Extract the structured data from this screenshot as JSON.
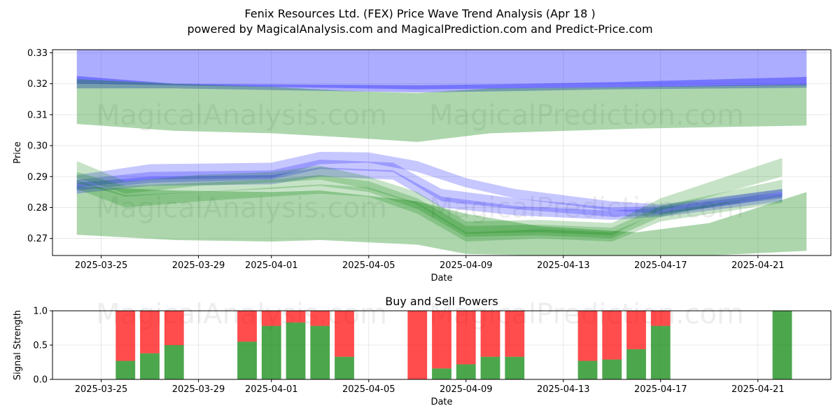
{
  "page": {
    "title": "Fenix Resources Ltd. (FEX) Price Wave Trend Analysis (Apr 18 )",
    "subtitle": "powered by MagicalAnalysis.com and MagicalPrediction.com and Predict-Price.com",
    "watermarks": [
      "MagicalAnalysis.com",
      "MagicalPrediction.com"
    ]
  },
  "colors": {
    "blue_band": "#0000ff",
    "green_band": "#008000",
    "buy": "#008000",
    "sell": "#ff0000",
    "grid": "#b0b0b0"
  },
  "chart_data": [
    {
      "type": "area",
      "title": "",
      "xlabel": "Date",
      "ylabel": "Price",
      "x_start": "2025-03-24",
      "x_end": "2025-04-23",
      "xlim": [
        "2025-03-23",
        "2025-04-24"
      ],
      "ylim": [
        0.2645,
        0.331
      ],
      "yticks": [
        0.27,
        0.28,
        0.29,
        0.3,
        0.31,
        0.32,
        0.33
      ],
      "ytick_labels": [
        "0.27",
        "0.28",
        "0.29",
        "0.30",
        "0.31",
        "0.32",
        "0.33"
      ],
      "xticks": [
        "2025-03-25",
        "2025-03-29",
        "2025-04-01",
        "2025-04-05",
        "2025-04-09",
        "2025-04-13",
        "2025-04-17",
        "2025-04-21"
      ],
      "grid": true,
      "series": [
        {
          "color": "blue",
          "kind": "band",
          "points": [
            [
              "2025-03-24",
              0.32,
              0.331
            ],
            [
              "2025-04-07",
              0.3182,
              0.331
            ],
            [
              "2025-04-23",
              0.3195,
              0.331
            ]
          ]
        },
        {
          "color": "blue",
          "kind": "band",
          "points": [
            [
              "2025-03-24",
              0.3185,
              0.3225
            ],
            [
              "2025-03-28",
              0.3185,
              0.32
            ],
            [
              "2025-04-07",
              0.3172,
              0.3195
            ],
            [
              "2025-04-10",
              0.3175,
              0.3198
            ],
            [
              "2025-04-15",
              0.3182,
              0.3205
            ],
            [
              "2025-04-23",
              0.3187,
              0.3222
            ]
          ]
        },
        {
          "color": "green",
          "kind": "band",
          "points": [
            [
              "2025-03-24",
              0.307,
              0.3215
            ],
            [
              "2025-03-28",
              0.3048,
              0.32
            ],
            [
              "2025-04-01",
              0.304,
              0.319
            ],
            [
              "2025-04-04",
              0.3027,
              0.3177
            ],
            [
              "2025-04-07",
              0.3012,
              0.317
            ],
            [
              "2025-04-10",
              0.304,
              0.3185
            ],
            [
              "2025-04-16",
              0.3055,
              0.319
            ],
            [
              "2025-04-23",
              0.3065,
              0.3198
            ]
          ]
        },
        {
          "color": "green",
          "kind": "band",
          "points": [
            [
              "2025-03-24",
              0.2712,
              0.2868
            ],
            [
              "2025-03-28",
              0.2695,
              0.2855
            ],
            [
              "2025-04-01",
              0.269,
              0.285
            ],
            [
              "2025-04-03",
              0.2695,
              0.2855
            ],
            [
              "2025-04-07",
              0.268,
              0.282
            ],
            [
              "2025-04-09",
              0.265,
              0.278
            ],
            [
              "2025-04-12",
              0.2645,
              0.274
            ],
            [
              "2025-04-16",
              0.2645,
              0.272
            ],
            [
              "2025-04-19",
              0.2645,
              0.275
            ],
            [
              "2025-04-23",
              0.266,
              0.285
            ]
          ]
        },
        {
          "color": "blue",
          "kind": "band",
          "points": [
            [
              "2025-03-24",
              0.2865,
              0.2905
            ],
            [
              "2025-03-27",
              0.289,
              0.294
            ],
            [
              "2025-04-01",
              0.2895,
              0.2945
            ],
            [
              "2025-04-03",
              0.294,
              0.298
            ],
            [
              "2025-04-05",
              0.2945,
              0.2978
            ],
            [
              "2025-04-07",
              0.2915,
              0.295
            ],
            [
              "2025-04-09",
              0.2865,
              0.2895
            ],
            [
              "2025-04-11",
              0.283,
              0.286
            ],
            [
              "2025-04-15",
              0.279,
              0.282
            ],
            [
              "2025-04-17",
              0.278,
              0.281
            ],
            [
              "2025-04-22",
              0.283,
              0.286
            ]
          ]
        },
        {
          "color": "blue",
          "kind": "band",
          "points": [
            [
              "2025-03-24",
              0.2855,
              0.289
            ],
            [
              "2025-03-27",
              0.288,
              0.2915
            ],
            [
              "2025-04-01",
              0.289,
              0.292
            ],
            [
              "2025-04-03",
              0.2925,
              0.2955
            ],
            [
              "2025-04-06",
              0.2915,
              0.2945
            ],
            [
              "2025-04-08",
              0.282,
              0.286
            ],
            [
              "2025-04-11",
              0.2795,
              0.283
            ],
            [
              "2025-04-15",
              0.277,
              0.28
            ],
            [
              "2025-04-17",
              0.2775,
              0.2805
            ],
            [
              "2025-04-22",
              0.2835,
              0.286
            ]
          ]
        },
        {
          "color": "blue",
          "kind": "band",
          "points": [
            [
              "2025-03-24",
              0.2845,
              0.288
            ],
            [
              "2025-03-27",
              0.287,
              0.29
            ],
            [
              "2025-04-01",
              0.2875,
              0.2905
            ],
            [
              "2025-04-03",
              0.29,
              0.293
            ],
            [
              "2025-04-06",
              0.289,
              0.292
            ],
            [
              "2025-04-08",
              0.28,
              0.2835
            ],
            [
              "2025-04-11",
              0.2775,
              0.2805
            ],
            [
              "2025-04-15",
              0.276,
              0.279
            ],
            [
              "2025-04-17",
              0.277,
              0.28
            ],
            [
              "2025-04-22",
              0.282,
              0.285
            ]
          ]
        },
        {
          "color": "green",
          "kind": "band",
          "points": [
            [
              "2025-03-24",
              0.2895,
              0.295
            ],
            [
              "2025-03-26",
              0.2845,
              0.2885
            ],
            [
              "2025-03-29",
              0.287,
              0.2905
            ],
            [
              "2025-04-01",
              0.288,
              0.2915
            ],
            [
              "2025-04-03",
              0.289,
              0.2935
            ],
            [
              "2025-04-05",
              0.286,
              0.29
            ],
            [
              "2025-04-07",
              0.281,
              0.285
            ],
            [
              "2025-04-09",
              0.2715,
              0.2755
            ],
            [
              "2025-04-12",
              0.272,
              0.276
            ],
            [
              "2025-04-15",
              0.271,
              0.275
            ],
            [
              "2025-04-17",
              0.279,
              0.283
            ],
            [
              "2025-04-22",
              0.29,
              0.296
            ]
          ]
        },
        {
          "color": "green",
          "kind": "band",
          "points": [
            [
              "2025-03-24",
              0.288,
              0.2915
            ],
            [
              "2025-03-26",
              0.2835,
              0.287
            ],
            [
              "2025-03-29",
              0.285,
              0.288
            ],
            [
              "2025-04-01",
              0.286,
              0.289
            ],
            [
              "2025-04-03",
              0.287,
              0.2905
            ],
            [
              "2025-04-05",
              0.285,
              0.2885
            ],
            [
              "2025-04-07",
              0.2795,
              0.283
            ],
            [
              "2025-04-09",
              0.2705,
              0.274
            ],
            [
              "2025-04-12",
              0.271,
              0.2745
            ],
            [
              "2025-04-15",
              0.27,
              0.2735
            ],
            [
              "2025-04-17",
              0.277,
              0.2805
            ],
            [
              "2025-04-22",
              0.285,
              0.289
            ]
          ]
        },
        {
          "color": "green",
          "kind": "band",
          "points": [
            [
              "2025-03-24",
              0.286,
              0.289
            ],
            [
              "2025-03-26",
              0.28,
              0.284
            ],
            [
              "2025-03-29",
              0.282,
              0.285
            ],
            [
              "2025-04-01",
              0.2835,
              0.2865
            ],
            [
              "2025-04-03",
              0.2845,
              0.2875
            ],
            [
              "2025-04-05",
              0.2835,
              0.2865
            ],
            [
              "2025-04-07",
              0.278,
              0.2815
            ],
            [
              "2025-04-09",
              0.269,
              0.272
            ],
            [
              "2025-04-12",
              0.27,
              0.273
            ],
            [
              "2025-04-15",
              0.269,
              0.272
            ],
            [
              "2025-04-17",
              0.2755,
              0.2785
            ],
            [
              "2025-04-22",
              0.2815,
              0.2845
            ]
          ]
        }
      ]
    },
    {
      "type": "bar",
      "title": "Buy and Sell Powers",
      "xlabel": "Date",
      "ylabel": "Signal Strength",
      "xlim": [
        "2025-03-23",
        "2025-04-24"
      ],
      "ylim": [
        0,
        1
      ],
      "yticks": [
        0.0,
        0.5,
        1.0
      ],
      "ytick_labels": [
        "0.0",
        "0.5",
        "1.0"
      ],
      "xticks": [
        "2025-03-25",
        "2025-03-29",
        "2025-04-01",
        "2025-04-05",
        "2025-04-09",
        "2025-04-13",
        "2025-04-17",
        "2025-04-21"
      ],
      "grid": true,
      "series": [
        {
          "name": "Buy"
        },
        {
          "name": "Sell"
        }
      ],
      "dates": [
        "2025-03-26",
        "2025-03-27",
        "2025-03-28",
        "2025-03-31",
        "2025-04-01",
        "2025-04-02",
        "2025-04-03",
        "2025-04-04",
        "2025-04-07",
        "2025-04-08",
        "2025-04-09",
        "2025-04-10",
        "2025-04-11",
        "2025-04-14",
        "2025-04-15",
        "2025-04-16",
        "2025-04-17",
        "2025-04-22"
      ],
      "buy": [
        0.27,
        0.38,
        0.5,
        0.55,
        0.78,
        0.83,
        0.78,
        0.33,
        0.0,
        0.16,
        0.22,
        0.33,
        0.33,
        0.27,
        0.29,
        0.44,
        0.78,
        1.0
      ],
      "sell": [
        0.73,
        0.62,
        0.5,
        0.45,
        0.22,
        0.17,
        0.22,
        0.67,
        1.0,
        0.84,
        0.78,
        0.67,
        0.67,
        0.73,
        0.71,
        0.56,
        0.22,
        0.0
      ]
    }
  ]
}
